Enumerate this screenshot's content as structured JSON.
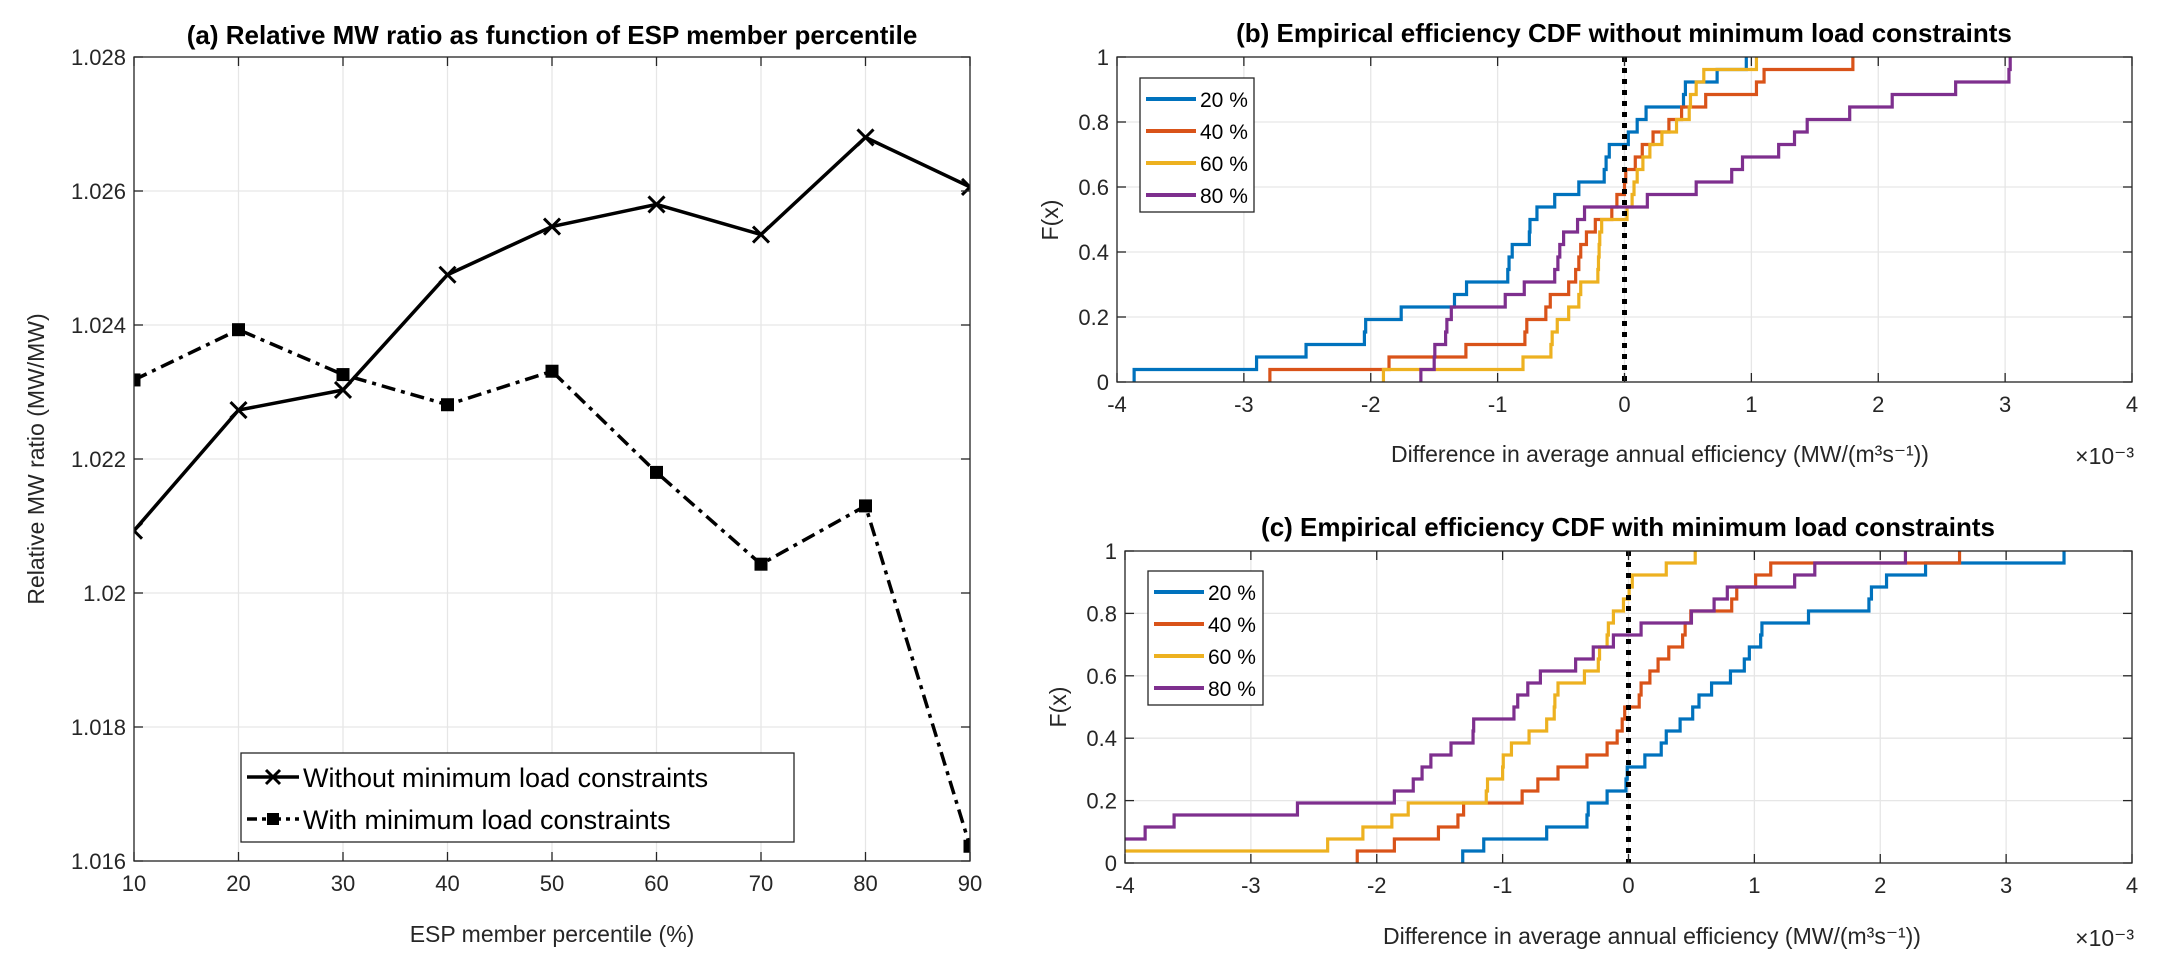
{
  "chart_data": [
    {
      "id": "a",
      "type": "line",
      "title": "(a) Relative MW ratio as function of ESP member percentile",
      "xlabel": "ESP member percentile (%)",
      "ylabel": "Relative MW ratio (MW/MW)",
      "xlim": [
        10,
        90
      ],
      "ylim": [
        1.016,
        1.028
      ],
      "xticks": [
        10,
        20,
        30,
        40,
        50,
        60,
        70,
        80,
        90
      ],
      "xtick_labels": [
        "10",
        "20",
        "30",
        "40",
        "50",
        "60",
        "70",
        "80",
        "90"
      ],
      "yticks": [
        1.016,
        1.018,
        1.02,
        1.022,
        1.024,
        1.026,
        1.028
      ],
      "ytick_labels": [
        "1.016",
        "1.018",
        "1.02",
        "1.022",
        "1.024",
        "1.026",
        "1.028"
      ],
      "grid": true,
      "legend_position": "bottom-center",
      "x": [
        10,
        20,
        30,
        40,
        50,
        60,
        70,
        80,
        90
      ],
      "series": [
        {
          "name": "Without minimum load constraints",
          "line_style": "solid",
          "marker": "x",
          "color": "#000000",
          "values": [
            1.02093,
            1.02273,
            1.02303,
            1.02475,
            1.02547,
            1.0258,
            1.02535,
            1.0268,
            1.02606
          ]
        },
        {
          "name": "With minimum load constraints",
          "line_style": "dash-dot",
          "marker": "square",
          "color": "#000000",
          "values": [
            1.02318,
            1.02393,
            1.02326,
            1.02281,
            1.02331,
            1.0218,
            1.02043,
            1.0213,
            1.01622
          ]
        }
      ]
    },
    {
      "id": "b",
      "type": "line",
      "subtype": "empirical-cdf",
      "title": "(b) Empirical efficiency CDF without minimum load constraints",
      "xlabel": "Difference in average annual efficiency (MW/(m³s⁻¹))",
      "x_multiplier_label": "×10⁻³",
      "ylabel": "F(x)",
      "xlim": [
        -4,
        4
      ],
      "ylim": [
        0,
        1
      ],
      "xticks": [
        -4,
        -3,
        -2,
        -1,
        0,
        1,
        2,
        3,
        4
      ],
      "xtick_labels": [
        "-4",
        "-3",
        "-2",
        "-1",
        "0",
        "1",
        "2",
        "3",
        "4"
      ],
      "yticks": [
        0,
        0.2,
        0.4,
        0.6,
        0.8,
        1
      ],
      "ytick_labels": [
        "0",
        "0.2",
        "0.4",
        "0.6",
        "0.8",
        "1"
      ],
      "grid": true,
      "legend_position": "top-left",
      "reference_line": {
        "x": 0,
        "style": "dotted",
        "color": "#000000"
      },
      "x_units": "×10⁻³ MW/(m³s⁻¹)",
      "series": [
        {
          "name": "20 %",
          "color": "#0072BD",
          "values": [
            -3.865,
            -2.9,
            -2.51,
            -2.05,
            -2.04,
            -1.76,
            -1.34,
            -1.245,
            -0.92,
            -0.91,
            -0.885,
            -0.75,
            -0.745,
            -0.69,
            -0.55,
            -0.36,
            -0.16,
            -0.145,
            -0.12,
            0.03,
            0.1,
            0.17,
            0.465,
            0.48,
            0.73,
            0.96
          ]
        },
        {
          "name": "40 %",
          "color": "#D95319",
          "values": [
            -2.795,
            -1.856,
            -1.25,
            -0.785,
            -0.77,
            -0.62,
            -0.585,
            -0.44,
            -0.385,
            -0.36,
            -0.345,
            -0.3,
            -0.23,
            -0.1,
            -0.06,
            0.0,
            0.01,
            0.085,
            0.14,
            0.225,
            0.35,
            0.45,
            0.64,
            1.04,
            1.1,
            1.8
          ]
        },
        {
          "name": "60 %",
          "color": "#EDB120",
          "values": [
            -1.9,
            -0.8,
            -0.58,
            -0.57,
            -0.53,
            -0.44,
            -0.36,
            -0.345,
            -0.21,
            -0.205,
            -0.2,
            -0.195,
            -0.18,
            0.02,
            0.06,
            0.075,
            0.1,
            0.145,
            0.2,
            0.295,
            0.41,
            0.51,
            0.52,
            0.565,
            0.625,
            1.04
          ]
        },
        {
          "name": "80 %",
          "color": "#7E2F8E",
          "values": [
            -1.605,
            -1.5,
            -1.495,
            -1.41,
            -1.4,
            -1.365,
            -0.94,
            -0.79,
            -0.55,
            -0.525,
            -0.51,
            -0.48,
            -0.37,
            -0.315,
            0.18,
            0.565,
            0.845,
            0.93,
            1.215,
            1.34,
            1.44,
            1.775,
            2.11,
            2.61,
            3.03,
            3.04
          ]
        }
      ]
    },
    {
      "id": "c",
      "type": "line",
      "subtype": "empirical-cdf",
      "title": "(c) Empirical efficiency CDF with minimum load constraints",
      "xlabel": "Difference in average annual efficiency (MW/(m³s⁻¹))",
      "x_multiplier_label": "×10⁻³",
      "ylabel": "F(x)",
      "xlim": [
        -4,
        4
      ],
      "ylim": [
        0,
        1
      ],
      "xticks": [
        -4,
        -3,
        -2,
        -1,
        0,
        1,
        2,
        3,
        4
      ],
      "xtick_labels": [
        "-4",
        "-3",
        "-2",
        "-1",
        "0",
        "1",
        "2",
        "3",
        "4"
      ],
      "yticks": [
        0,
        0.2,
        0.4,
        0.6,
        0.8,
        1
      ],
      "ytick_labels": [
        "0",
        "0.2",
        "0.4",
        "0.6",
        "0.8",
        "1"
      ],
      "grid": true,
      "legend_position": "top-left",
      "reference_line": {
        "x": 0,
        "style": "dotted",
        "color": "#000000"
      },
      "x_units": "×10⁻³ MW/(m³s⁻¹)",
      "series": [
        {
          "name": "20 %",
          "color": "#0072BD",
          "values": [
            -1.317,
            -1.15,
            -0.65,
            -0.33,
            -0.32,
            -0.17,
            -0.02,
            -0.01,
            0.13,
            0.26,
            0.3,
            0.41,
            0.51,
            0.56,
            0.66,
            0.81,
            0.92,
            0.96,
            1.05,
            1.06,
            1.43,
            1.91,
            1.93,
            2.05,
            2.36,
            3.46
          ]
        },
        {
          "name": "40 %",
          "color": "#D95319",
          "values": [
            -2.155,
            -1.86,
            -1.51,
            -1.355,
            -1.31,
            -0.845,
            -0.72,
            -0.56,
            -0.33,
            -0.17,
            -0.09,
            -0.05,
            -0.03,
            0.085,
            0.1,
            0.17,
            0.235,
            0.32,
            0.43,
            0.45,
            0.495,
            0.82,
            0.86,
            1.01,
            1.13,
            2.63
          ]
        },
        {
          "name": "60 %",
          "color": "#EDB120",
          "values": [
            -4.2,
            -2.39,
            -2.11,
            -1.88,
            -1.75,
            -1.13,
            -1.12,
            -1.0,
            -0.995,
            -0.93,
            -0.79,
            -0.65,
            -0.59,
            -0.585,
            -0.56,
            -0.35,
            -0.24,
            -0.23,
            -0.17,
            -0.16,
            -0.12,
            -0.04,
            0.005,
            0.03,
            0.3,
            0.53
          ]
        },
        {
          "name": "80 %",
          "color": "#7E2F8E",
          "values": [
            -4.5,
            -4.2,
            -3.84,
            -3.61,
            -2.63,
            -1.86,
            -1.71,
            -1.64,
            -1.57,
            -1.41,
            -1.235,
            -1.23,
            -0.91,
            -0.88,
            -0.8,
            -0.7,
            -0.42,
            -0.28,
            -0.12,
            0.1,
            0.5,
            0.68,
            0.785,
            1.32,
            1.48,
            2.2
          ]
        }
      ]
    }
  ]
}
